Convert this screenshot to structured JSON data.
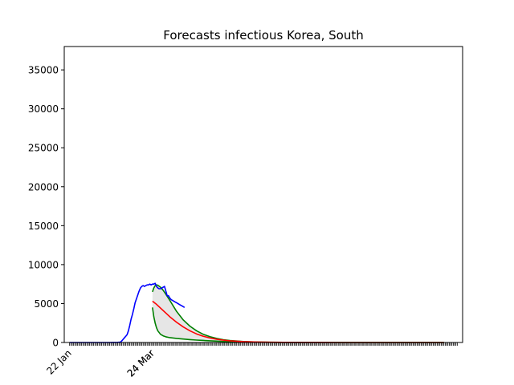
{
  "chart_data": {
    "type": "line",
    "title": "Forecasts infectious Korea, South",
    "xlabel": "",
    "ylabel": "",
    "x_start_label": "22 Jan",
    "x_split_label": "24 Mar",
    "ylim": [
      0,
      38000
    ],
    "yticks": [
      0,
      5000,
      10000,
      15000,
      20000,
      25000,
      30000,
      35000
    ],
    "grid": false,
    "legend": "none",
    "colors": {
      "observed": "#0000ff",
      "forecast_mean": "#ff0000",
      "forecast_bounds": "#008000",
      "band_fill": "#e6e6e6"
    },
    "series": [
      {
        "key": "observed",
        "day_offsets": [
          0,
          4,
          8,
          12,
          16,
          20,
          24,
          28,
          30,
          32,
          34,
          36,
          38,
          39,
          40,
          41,
          42,
          43,
          44,
          45,
          46,
          47,
          48,
          49,
          50,
          51,
          52,
          53,
          54,
          55,
          56,
          57,
          58,
          59,
          60,
          61,
          62,
          63,
          64,
          65,
          66,
          67,
          68,
          69,
          70,
          71,
          72,
          73,
          74,
          75,
          76,
          77,
          78,
          79,
          80,
          81,
          82,
          83,
          84,
          85,
          86
        ],
        "values": [
          0,
          0,
          0,
          0,
          0,
          0,
          0,
          0,
          0,
          5,
          10,
          20,
          50,
          200,
          400,
          600,
          800,
          1000,
          1500,
          2200,
          3000,
          3600,
          4300,
          5100,
          5600,
          6100,
          6600,
          7000,
          7200,
          7300,
          7200,
          7300,
          7400,
          7400,
          7500,
          7400,
          7500,
          7500,
          7600,
          7200,
          7000,
          6900,
          6900,
          7000,
          7100,
          7200,
          6600,
          6000,
          6000,
          5700,
          5500,
          5400,
          5300,
          5200,
          5100,
          5000,
          4900,
          4800,
          4700,
          4600,
          4500
        ]
      },
      {
        "key": "forecast_mean",
        "day_offsets": [
          62,
          65,
          70,
          75,
          80,
          85,
          90,
          95,
          100,
          105,
          110,
          115,
          120,
          130,
          140,
          150,
          160,
          170,
          180,
          190,
          200,
          210,
          220,
          230,
          240,
          250,
          260,
          270,
          280
        ],
        "values": [
          5300,
          4900,
          4100,
          3300,
          2600,
          2000,
          1500,
          1100,
          800,
          580,
          420,
          300,
          210,
          110,
          60,
          30,
          15,
          8,
          4,
          2,
          1,
          0,
          0,
          0,
          0,
          0,
          0,
          0,
          0
        ]
      },
      {
        "key": "forecast_upper",
        "day_offsets": [
          62,
          63,
          64,
          65,
          66,
          68,
          70,
          72,
          75,
          80,
          85,
          90,
          95,
          100,
          105,
          110,
          115,
          120,
          130,
          140,
          150,
          160,
          170,
          180,
          190,
          200,
          210,
          220,
          230,
          240,
          250,
          260,
          270,
          280
        ],
        "values": [
          6500,
          7000,
          7300,
          7400,
          7350,
          7100,
          6700,
          6200,
          5400,
          4000,
          2900,
          2100,
          1500,
          1050,
          750,
          520,
          360,
          250,
          120,
          60,
          30,
          15,
          8,
          4,
          2,
          1,
          0,
          0,
          0,
          0,
          0,
          0,
          0,
          0
        ]
      },
      {
        "key": "forecast_lower",
        "day_offsets": [
          62,
          63,
          64,
          65,
          66,
          68,
          70,
          72,
          75,
          80,
          85,
          90,
          95,
          100,
          105,
          110,
          115,
          120,
          130,
          140,
          150,
          160,
          170,
          180,
          190,
          200,
          210,
          220,
          230,
          240,
          250,
          260,
          270,
          280
        ],
        "values": [
          4500,
          3300,
          2500,
          1900,
          1500,
          1050,
          850,
          730,
          620,
          520,
          440,
          370,
          310,
          260,
          210,
          170,
          130,
          100,
          60,
          35,
          20,
          10,
          5,
          2,
          1,
          0,
          0,
          0,
          0,
          0,
          0,
          0,
          0,
          0
        ]
      }
    ]
  }
}
